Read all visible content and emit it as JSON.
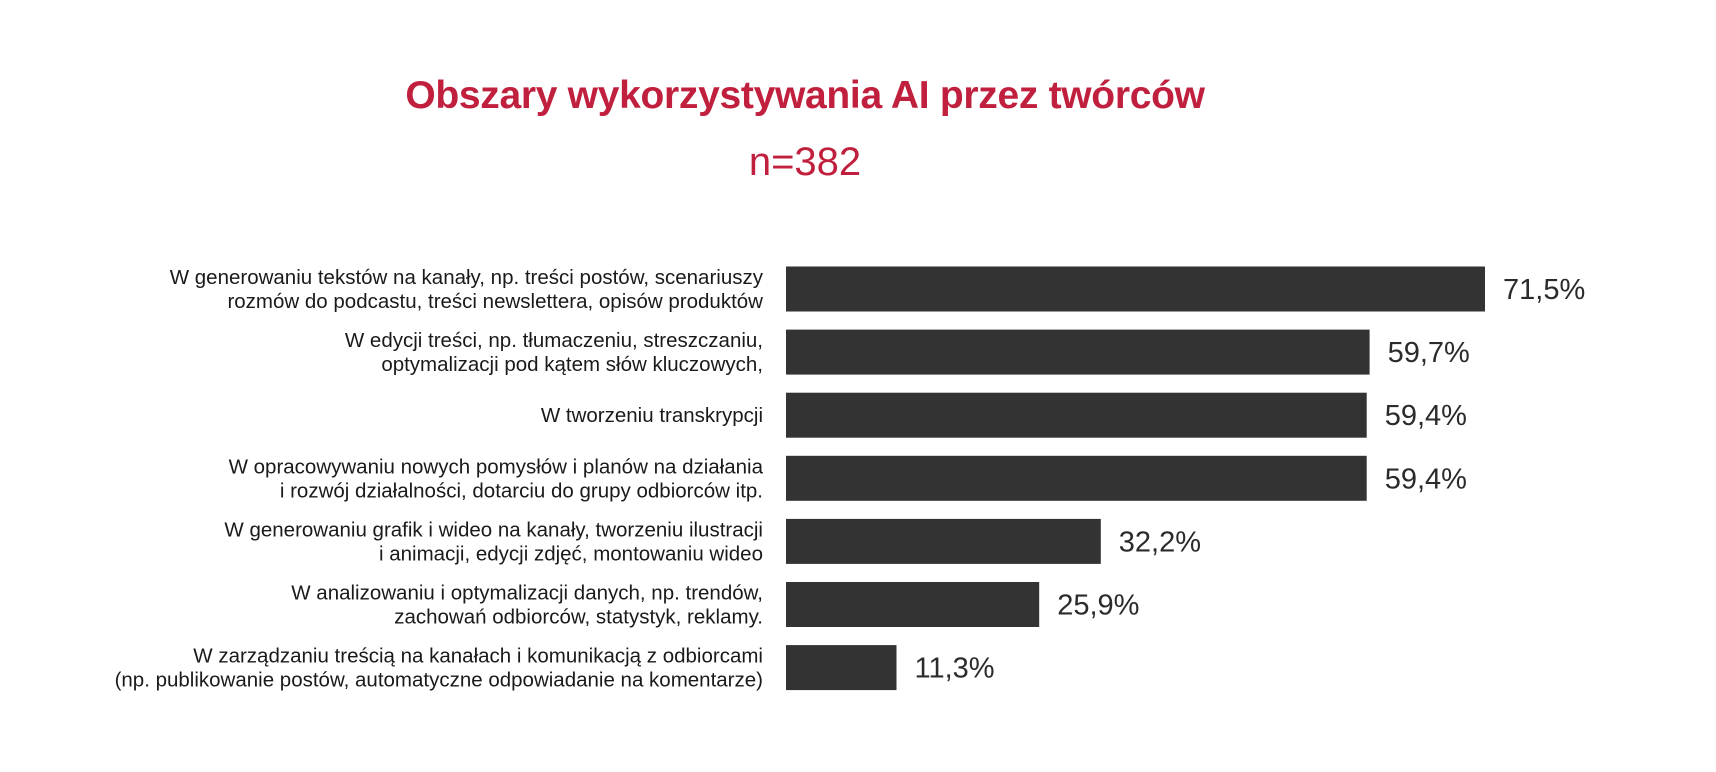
{
  "chart_data": {
    "type": "bar",
    "orientation": "horizontal",
    "title": "Obszary wykorzystywania AI przez twórców",
    "subtitle": "n=382",
    "categories": [
      [
        "W generowaniu tekstów na kanały, np. treści postów, scenariuszy",
        "rozmów do podcastu, treści newslettera, opisów produktów"
      ],
      [
        "W edycji treści, np. tłumaczeniu, streszczaniu,",
        "optymalizacji pod kątem słów kluczowych,"
      ],
      [
        "W tworzeniu transkrypcji"
      ],
      [
        "W opracowywaniu nowych pomysłów i planów na działania",
        "i rozwój działalności, dotarciu do grupy odbiorców itp."
      ],
      [
        "W generowaniu grafik i wideo na kanały, tworzeniu ilustracji",
        "i animacji, edycji zdjęć, montowaniu wideo"
      ],
      [
        "W analizowaniu i optymalizacji danych, np. trendów,",
        "zachowań odbiorców, statystyk, reklamy."
      ],
      [
        "W zarządzaniu treścią na kanałach i komunikacją z odbiorcami",
        "(np. publikowanie postów, automatyczne odpowiadanie na komentarze)"
      ]
    ],
    "values": [
      71.5,
      59.7,
      59.4,
      59.4,
      32.2,
      25.9,
      11.3
    ],
    "value_labels": [
      "71,5%",
      "59,7%",
      "59,4%",
      "59,4%",
      "32,2%",
      "25,9%",
      "11,3%"
    ],
    "unit": "%",
    "xlim": [
      0,
      100
    ],
    "grid": false,
    "legend": "none",
    "colors": {
      "bar": "#333333",
      "title": "#c0203d",
      "text": "#1a1a1a"
    }
  }
}
